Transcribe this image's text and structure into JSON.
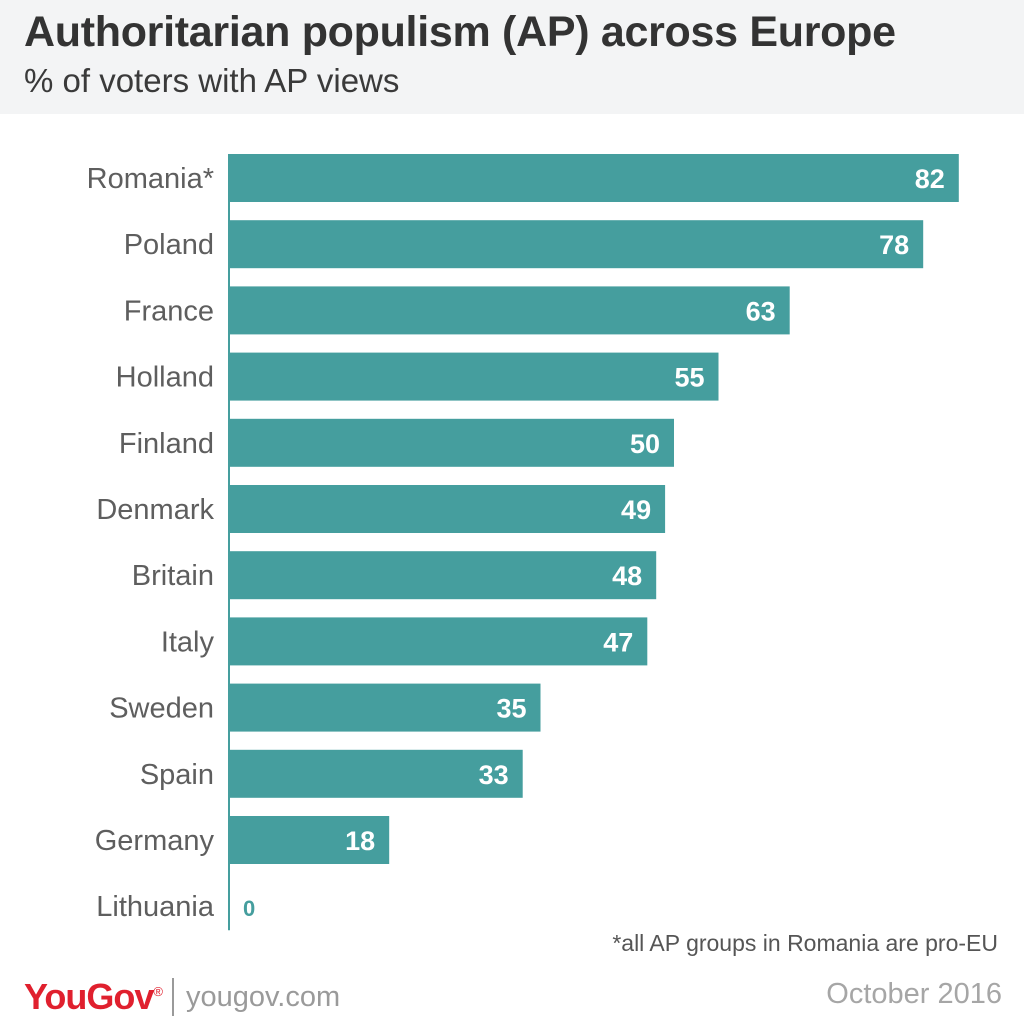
{
  "header": {
    "title": "Authoritarian populism (AP) across Europe",
    "subtitle": "% of voters with AP views"
  },
  "chart_data": {
    "type": "bar",
    "orientation": "horizontal",
    "title": "Authoritarian populism (AP) across Europe",
    "subtitle": "% of voters with AP views",
    "categories": [
      "Romania*",
      "Poland",
      "France",
      "Holland",
      "Finland",
      "Denmark",
      "Britain",
      "Italy",
      "Sweden",
      "Spain",
      "Germany",
      "Lithuania"
    ],
    "values": [
      82,
      78,
      63,
      55,
      50,
      49,
      48,
      47,
      35,
      33,
      18,
      0
    ],
    "xlabel": "",
    "ylabel": "",
    "xlim": [
      0,
      100
    ],
    "grid": false,
    "bar_color": "#459e9e",
    "label_inside_color": "#ffffff",
    "label_outside_color": "#459e9e"
  },
  "footnote": "*all AP groups in Romania are pro-EU",
  "footer": {
    "logo": "YouGov",
    "logo_mark": "®",
    "site": "yougov.com",
    "date": "October 2016"
  },
  "colors": {
    "brand_red": "#e0202e",
    "header_bg": "#f3f4f5"
  }
}
